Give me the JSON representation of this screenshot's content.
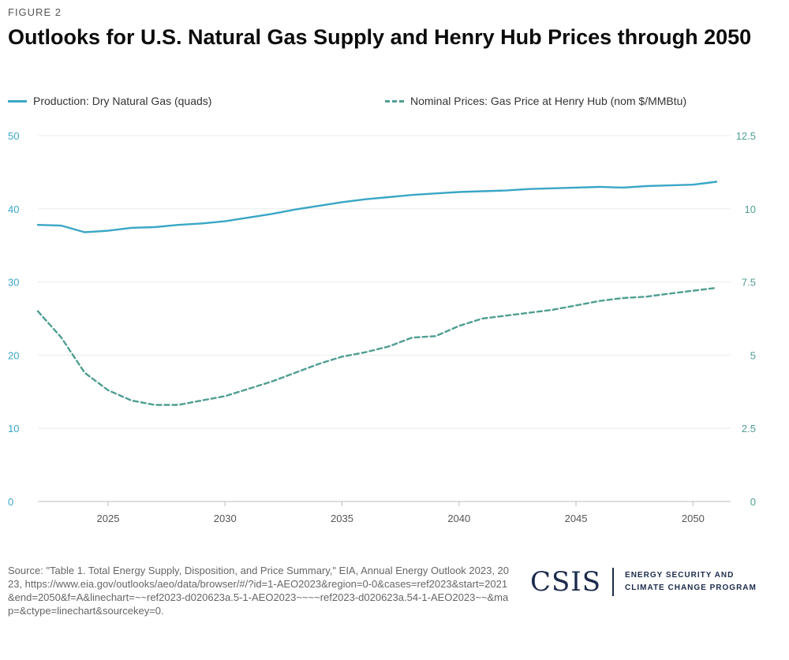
{
  "figure_label": "FIGURE 2",
  "title": "Outlooks for U.S. Natural Gas Supply and Henry Hub Prices through 2050",
  "source": "Source: \"Table 1. Total Energy Supply, Disposition, and Price Summary,\" EIA, Annual Energy Outlook 2023, 2023, https://www.eia.gov/outlooks/aeo/data/browser/#/?id=1-AEO2023&region=0-0&cases=ref2023&start=2021&end=2050&f=A&linechart=~~ref2023-d020623a.5-1-AEO2023~~~~ref2023-d020623a.54-1-AEO2023~~&map=&ctype=linechart&sourcekey=0.",
  "logo": {
    "name": "CSIS",
    "program_line1": "ENERGY SECURITY AND",
    "program_line2": "CLIMATE CHANGE PROGRAM"
  },
  "colors": {
    "production": "#3aa6c6",
    "price": "#4f9e92",
    "left_axis": "#3aa6c6",
    "right_axis": "#4f9e92"
  },
  "chart_data": {
    "type": "line",
    "legend_position": "top",
    "grid": true,
    "x": [
      2022,
      2023,
      2024,
      2025,
      2026,
      2027,
      2028,
      2029,
      2030,
      2031,
      2032,
      2033,
      2034,
      2035,
      2036,
      2037,
      2038,
      2039,
      2040,
      2041,
      2042,
      2043,
      2044,
      2045,
      2046,
      2047,
      2048,
      2049,
      2050,
      2051
    ],
    "x_ticks": [
      "2025",
      "2030",
      "2035",
      "2040",
      "2045",
      "2050"
    ],
    "xlim": [
      2022,
      2051
    ],
    "y_left": {
      "lim": [
        0,
        50
      ],
      "ticks": [
        "0",
        "10",
        "20",
        "30",
        "40",
        "50"
      ]
    },
    "y_right": {
      "lim": [
        0,
        12.5
      ],
      "ticks": [
        "0",
        "2.5",
        "5",
        "7.5",
        "10",
        "12.5"
      ]
    },
    "series": [
      {
        "name": "Production: Dry Natural Gas (quads)",
        "axis": "left",
        "style": "solid",
        "values": [
          37.8,
          37.7,
          36.8,
          37.0,
          37.4,
          37.5,
          37.8,
          38.0,
          38.3,
          38.8,
          39.3,
          39.9,
          40.4,
          40.9,
          41.3,
          41.6,
          41.9,
          42.1,
          42.3,
          42.4,
          42.5,
          42.7,
          42.8,
          42.9,
          43.0,
          42.9,
          43.1,
          43.2,
          43.3,
          43.7
        ]
      },
      {
        "name": "Nominal Prices: Gas Price at Henry Hub (nom $/MMBtu)",
        "axis": "right",
        "style": "dashed",
        "values": [
          6.5,
          5.6,
          4.4,
          3.8,
          3.45,
          3.3,
          3.3,
          3.45,
          3.6,
          3.85,
          4.1,
          4.4,
          4.7,
          4.95,
          5.1,
          5.3,
          5.6,
          5.65,
          6.0,
          6.25,
          6.35,
          6.45,
          6.55,
          6.7,
          6.85,
          6.95,
          7.0,
          7.1,
          7.2,
          7.3
        ]
      }
    ]
  }
}
